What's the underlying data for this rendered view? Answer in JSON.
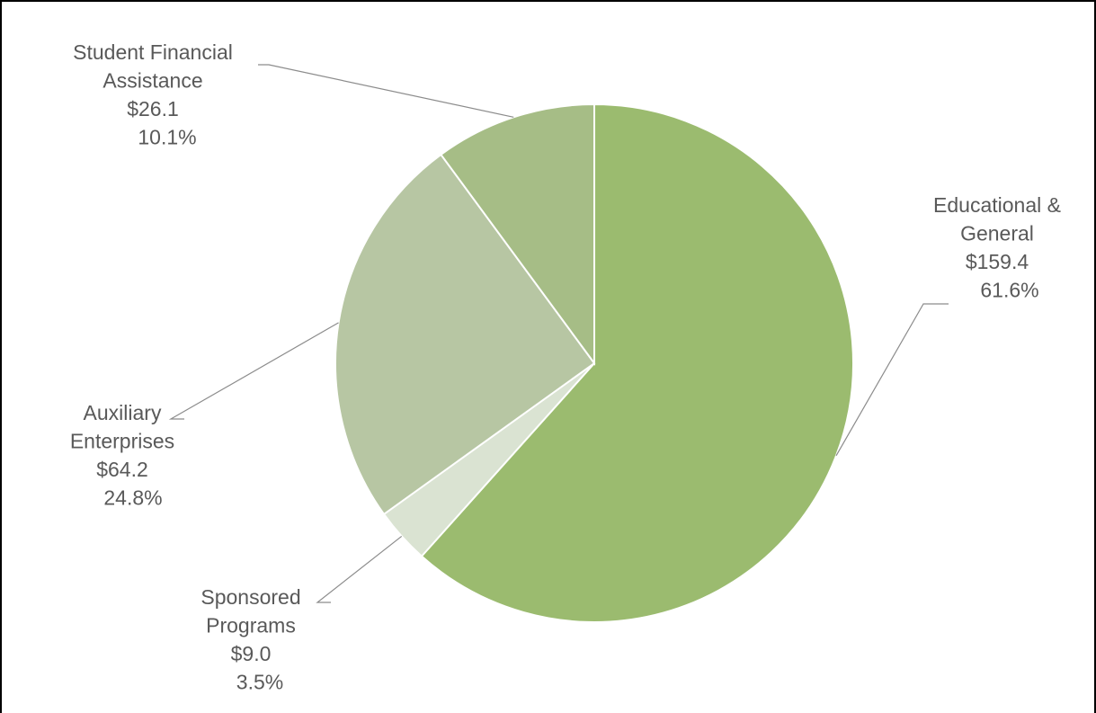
{
  "chart_data": {
    "type": "pie",
    "title": "",
    "slices": [
      {
        "name": "Educational & General",
        "label_lines": [
          "Educational &",
          "General"
        ],
        "value_label": "$159.4",
        "percent_label": "61.6%",
        "value": 159.4,
        "percent": 61.6,
        "color": "#9bbb6f"
      },
      {
        "name": "Sponsored Programs",
        "label_lines": [
          "Sponsored",
          "Programs"
        ],
        "value_label": "$9.0",
        "percent_label": "3.5%",
        "value": 9.0,
        "percent": 3.5,
        "color": "#dae3d2"
      },
      {
        "name": "Auxiliary Enterprises",
        "label_lines": [
          "Auxiliary",
          "Enterprises"
        ],
        "value_label": "$64.2",
        "percent_label": "24.8%",
        "value": 64.2,
        "percent": 24.8,
        "color": "#b7c6a3"
      },
      {
        "name": "Student Financial Assistance",
        "label_lines": [
          "Student Financial",
          "Assistance"
        ],
        "value_label": "$26.1",
        "percent_label": "10.1%",
        "value": 26.1,
        "percent": 10.1,
        "color": "#a6bd86"
      }
    ],
    "start": "12 o'clock",
    "direction": "clockwise",
    "legend": "none (data labels with leader lines)"
  }
}
